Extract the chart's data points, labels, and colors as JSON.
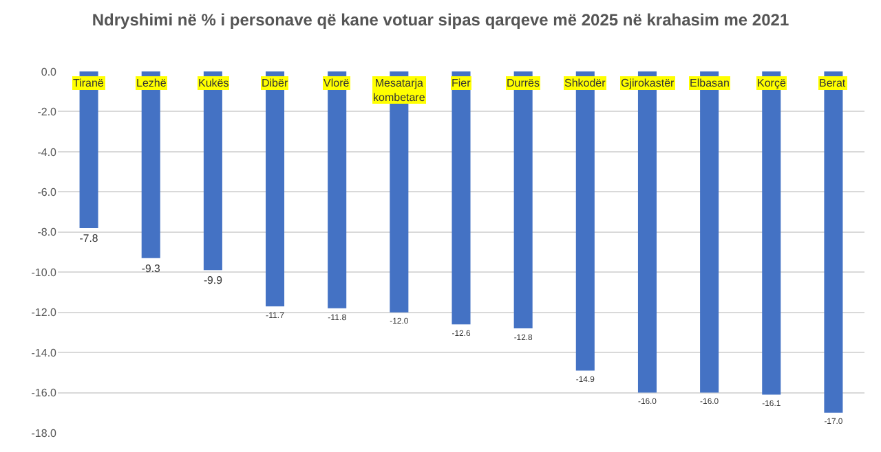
{
  "chart_data": {
    "type": "bar",
    "title": "Ndryshimi në % i personave që kane votuar sipas qarqeve më 2025 në krahasim me 2021",
    "categories": [
      "Tiranë",
      "Lezhë",
      "Kukës",
      "Dibër",
      "Vlorë",
      "Mesatarja kombetare",
      "Fier",
      "Durrës",
      "Shkodër",
      "Gjirokastër",
      "Elbasan",
      "Korçë",
      "Berat"
    ],
    "values": [
      -7.8,
      -9.3,
      -9.9,
      -11.7,
      -11.8,
      -12.0,
      -12.6,
      -12.8,
      -14.9,
      -16.0,
      -16.0,
      -16.1,
      -17.0
    ],
    "value_labels": [
      "-7.8",
      "-9.3",
      "-9.9",
      "-11.7",
      "-11.8",
      "-12.0",
      "-12.6",
      "-12.8",
      "-14.9",
      "-16.0",
      "-16.0",
      "-16.1",
      "-17.0"
    ],
    "color": "#4472c4",
    "ylim": [
      -18,
      0
    ],
    "yticks": [
      {
        "value": 0,
        "label": "0.0"
      },
      {
        "value": -2,
        "label": "-2.0"
      },
      {
        "value": -4,
        "label": "-4.0"
      },
      {
        "value": -6,
        "label": "-6.0"
      },
      {
        "value": -8,
        "label": "-8.0"
      },
      {
        "value": -10,
        "label": "-10.0"
      },
      {
        "value": -12,
        "label": "-12.0"
      },
      {
        "value": -14,
        "label": "-14.0"
      },
      {
        "value": -16,
        "label": "-16.0"
      },
      {
        "value": -18,
        "label": "-18.0"
      }
    ],
    "grid": true
  }
}
